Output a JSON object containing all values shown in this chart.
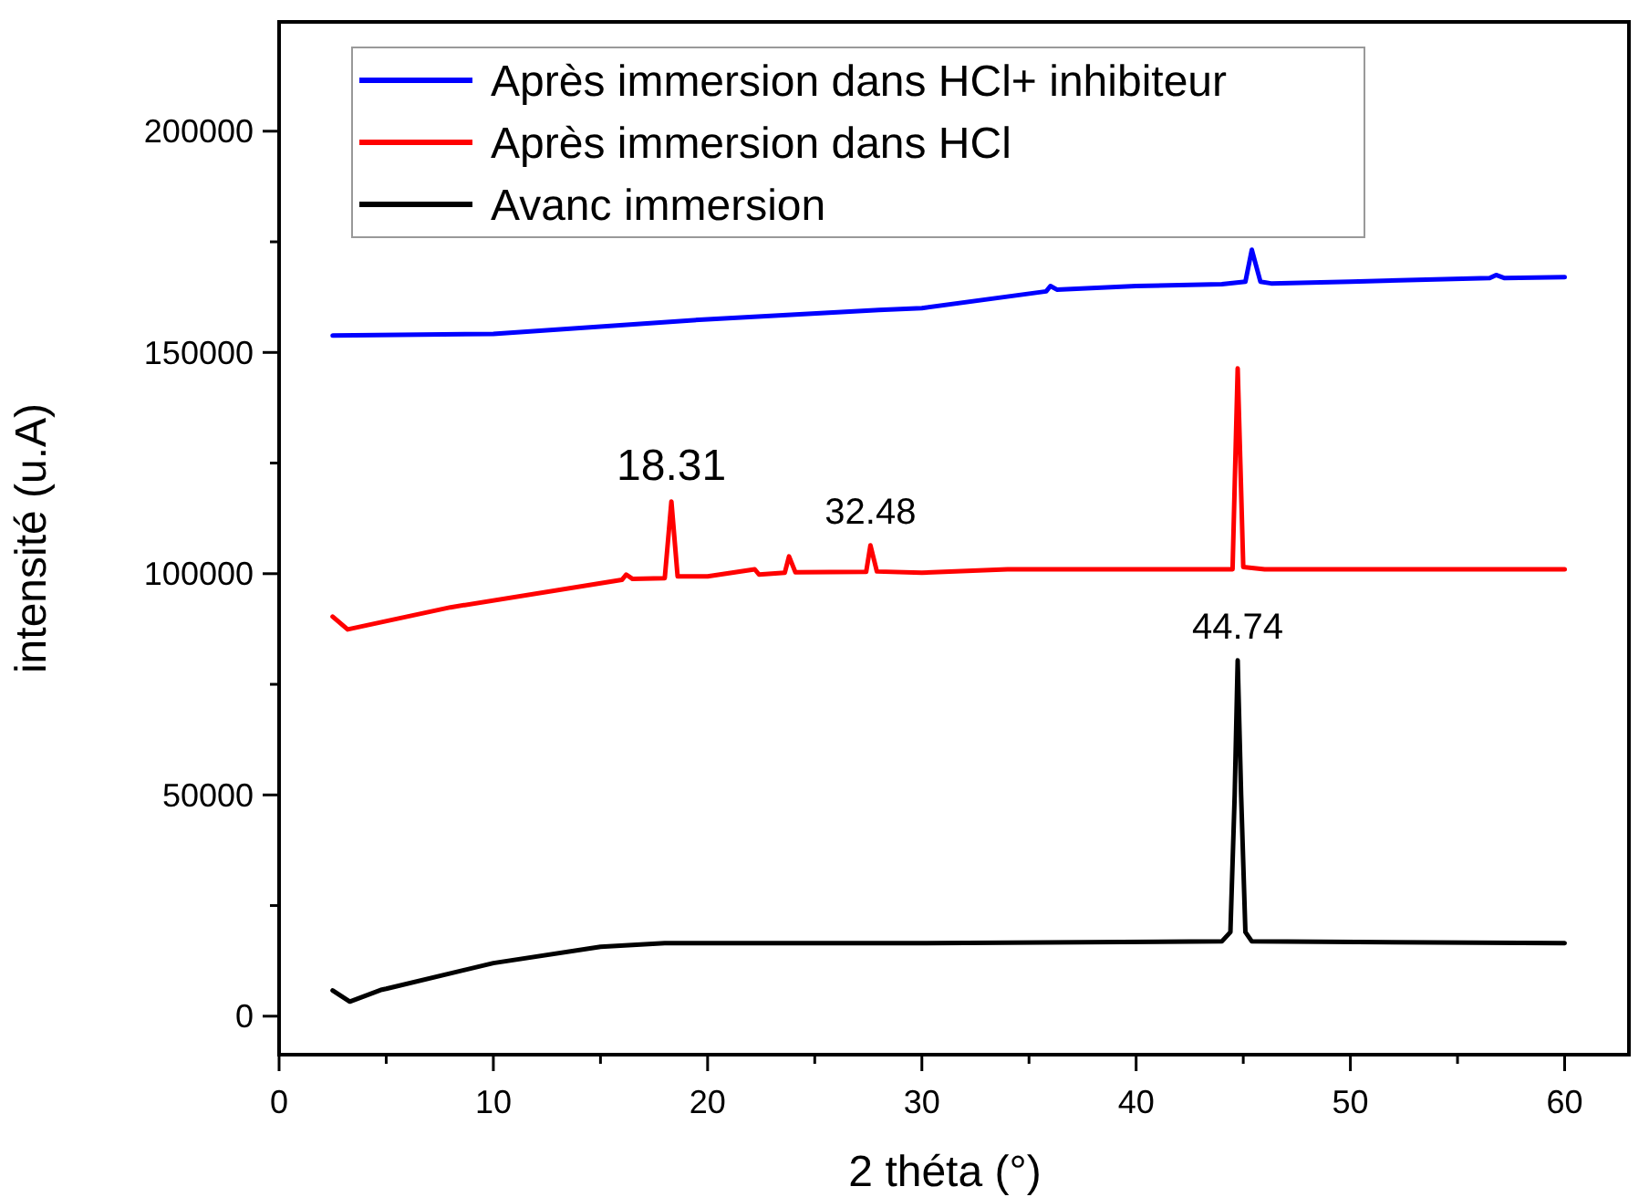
{
  "chart_data": {
    "type": "line",
    "xlabel": "2 théta (°)",
    "ylabel": "intensité (u.A)",
    "xlim": [
      0,
      63
    ],
    "ylim": [
      -8700,
      224700
    ],
    "xticks": [
      0,
      {
        "value": 5,
        "label": null
      },
      10,
      {
        "value": 15,
        "label": null
      },
      20,
      {
        "value": 25,
        "label": null
      },
      30,
      {
        "value": 35,
        "label": null
      },
      40,
      {
        "value": 45,
        "label": null
      },
      50,
      {
        "value": 55,
        "label": null
      },
      60
    ],
    "yticks": [
      0,
      {
        "value": 25000,
        "label": null
      },
      50000,
      {
        "value": 75000,
        "label": null
      },
      100000,
      {
        "value": 125000,
        "label": null
      },
      150000,
      {
        "value": 175000,
        "label": null
      },
      200000
    ],
    "grid": false,
    "legend": "top left",
    "marker": "none",
    "line_style": "solid",
    "annotations": [
      {
        "text": "18.31",
        "x": 18.31,
        "y": 116300
      },
      {
        "text": "32.48",
        "x": 27.6,
        "y": 106400
      },
      {
        "text": "44.74",
        "x": 44.74,
        "y": 80400
      }
    ],
    "series": [
      {
        "name": "Après immersion dans HCl+ inhibiteur",
        "color": "#0000ff",
        "x": [
          2.5,
          10,
          20,
          28,
          30,
          35.8,
          36,
          36.3,
          40,
          44,
          45.1,
          45.4,
          45.8,
          46.3,
          50,
          56.5,
          56.8,
          57.2,
          60
        ],
        "values": [
          153800,
          154200,
          157500,
          159600,
          160000,
          163800,
          165000,
          164200,
          165000,
          165400,
          166000,
          173200,
          166000,
          165600,
          166000,
          166800,
          167500,
          166800,
          167000
        ]
      },
      {
        "name": "Après immersion dans HCl",
        "color": "#ff0000",
        "x": [
          2.5,
          3.2,
          8,
          16,
          16.2,
          16.5,
          18,
          18.31,
          18.6,
          20,
          22.2,
          22.4,
          23.6,
          23.8,
          24.1,
          27.4,
          27.6,
          27.9,
          30,
          34,
          40,
          44.5,
          44.74,
          45,
          46,
          60
        ],
        "values": [
          90300,
          87400,
          92400,
          98600,
          99800,
          98800,
          99000,
          116300,
          99400,
          99400,
          101000,
          99800,
          100200,
          103900,
          100300,
          100400,
          106400,
          100500,
          100200,
          101000,
          101000,
          101000,
          146400,
          101500,
          101000,
          101000
        ]
      },
      {
        "name": "Avanc immersion",
        "color": "#000000",
        "x": [
          2.5,
          3.3,
          4.8,
          5,
          10,
          15,
          18,
          30,
          44,
          44.4,
          44.6,
          44.74,
          44.9,
          45.1,
          45.4,
          60
        ],
        "values": [
          5800,
          3300,
          6000,
          6200,
          12000,
          15700,
          16500,
          16500,
          16900,
          19000,
          50000,
          80400,
          50000,
          19000,
          16900,
          16500
        ]
      }
    ]
  }
}
